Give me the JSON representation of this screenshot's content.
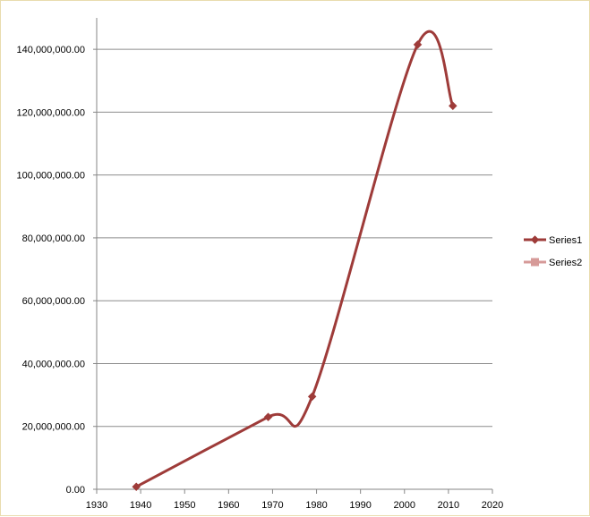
{
  "chart_data": {
    "type": "scatter",
    "title": "",
    "xlabel": "",
    "ylabel": "",
    "xlim": [
      1930,
      2020
    ],
    "ylim": [
      0,
      150000000
    ],
    "x_ticks": [
      "1930",
      "1940",
      "1950",
      "1960",
      "1970",
      "1980",
      "1990",
      "2000",
      "2010",
      "2020"
    ],
    "y_ticks": [
      "0.00",
      "20,000,000.00",
      "40,000,000.00",
      "60,000,000.00",
      "80,000,000.00",
      "100,000,000.00",
      "120,000,000.00",
      "140,000,000.00"
    ],
    "grid": "horizontal major gridlines",
    "smoothed_lines": true,
    "legend_position": "right",
    "series": [
      {
        "name": "Series1",
        "color": "#9e3b39",
        "marker": "diamond",
        "x": [
          1939,
          1969,
          1979,
          2003,
          2011
        ],
        "y": [
          800000,
          23000000,
          29500000,
          141500000,
          122000000
        ]
      },
      {
        "name": "Series2",
        "color": "#d69a98",
        "marker": "square",
        "x": [],
        "y": []
      }
    ]
  }
}
